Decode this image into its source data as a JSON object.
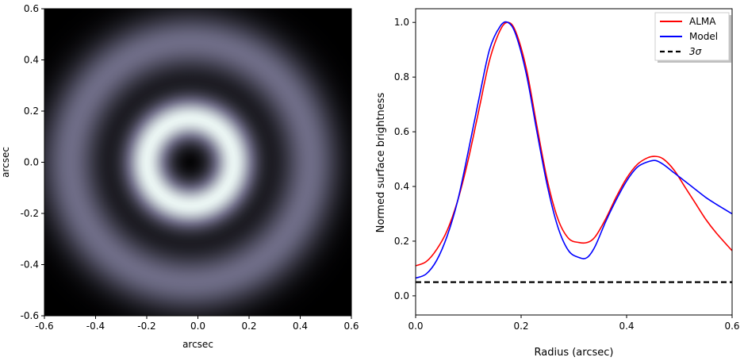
{
  "chart_data": [
    {
      "type": "heatmap",
      "xlabel": "arcsec",
      "ylabel": "arcsec",
      "xlim": [
        -0.6,
        0.6
      ],
      "ylim": [
        -0.6,
        0.6
      ],
      "xticks": [
        "-0.6",
        "-0.4",
        "-0.2",
        "0.0",
        "0.2",
        "0.4",
        "0.6"
      ],
      "yticks": [
        "-0.6",
        "-0.4",
        "-0.2",
        "0.0",
        "0.2",
        "0.4",
        "0.6"
      ],
      "colormap": {
        "low": "#000000",
        "mid": "#6e6c86",
        "high": "#eaf5f3"
      },
      "rings": [
        {
          "radius": 0.0,
          "width": 0.06,
          "intensity": 0.0
        },
        {
          "radius": 0.17,
          "width": 0.06,
          "intensity": 1.0
        },
        {
          "radius": 0.33,
          "width": 0.06,
          "intensity": 0.0
        },
        {
          "radius": 0.47,
          "width": 0.08,
          "intensity": 0.5
        }
      ],
      "center_offset": [
        -0.03,
        0.0
      ]
    },
    {
      "type": "line",
      "xlabel": "Radius (arcsec)",
      "ylabel": "Normed surface brightness",
      "xlim": [
        0.0,
        0.6
      ],
      "ylim": [
        -0.07,
        1.05
      ],
      "xticks": [
        "0.0",
        "0.2",
        "0.4",
        "0.6"
      ],
      "yticks": [
        "0.0",
        "0.2",
        "0.4",
        "0.6",
        "0.8",
        "1.0"
      ],
      "legend_position": "top-right",
      "series": [
        {
          "name": "ALMA",
          "color": "#ff0000",
          "style": "solid",
          "x": [
            0.0,
            0.02,
            0.04,
            0.06,
            0.08,
            0.1,
            0.12,
            0.14,
            0.16,
            0.175,
            0.19,
            0.21,
            0.23,
            0.25,
            0.27,
            0.29,
            0.31,
            0.325,
            0.34,
            0.36,
            0.38,
            0.4,
            0.42,
            0.44,
            0.455,
            0.47,
            0.49,
            0.51,
            0.53,
            0.55,
            0.57,
            0.6
          ],
          "y": [
            0.11,
            0.125,
            0.17,
            0.24,
            0.35,
            0.5,
            0.68,
            0.86,
            0.97,
            1.0,
            0.965,
            0.83,
            0.62,
            0.42,
            0.28,
            0.21,
            0.195,
            0.195,
            0.215,
            0.28,
            0.36,
            0.43,
            0.48,
            0.505,
            0.51,
            0.5,
            0.46,
            0.4,
            0.34,
            0.28,
            0.23,
            0.165
          ]
        },
        {
          "name": "Model",
          "color": "#0000ff",
          "style": "solid",
          "x": [
            0.0,
            0.02,
            0.04,
            0.06,
            0.08,
            0.1,
            0.12,
            0.14,
            0.16,
            0.175,
            0.19,
            0.21,
            0.23,
            0.25,
            0.27,
            0.29,
            0.31,
            0.325,
            0.34,
            0.36,
            0.38,
            0.4,
            0.42,
            0.44,
            0.455,
            0.47,
            0.49,
            0.51,
            0.53,
            0.55,
            0.57,
            0.6
          ],
          "y": [
            0.065,
            0.08,
            0.13,
            0.22,
            0.35,
            0.53,
            0.72,
            0.9,
            0.985,
            1.0,
            0.955,
            0.81,
            0.6,
            0.4,
            0.25,
            0.165,
            0.14,
            0.14,
            0.18,
            0.27,
            0.35,
            0.42,
            0.47,
            0.49,
            0.495,
            0.48,
            0.45,
            0.42,
            0.39,
            0.36,
            0.335,
            0.3
          ]
        },
        {
          "name": "3σ",
          "color": "#000000",
          "style": "dashed",
          "x": [
            0.0,
            0.6
          ],
          "y": [
            0.05,
            0.05
          ]
        }
      ]
    }
  ]
}
